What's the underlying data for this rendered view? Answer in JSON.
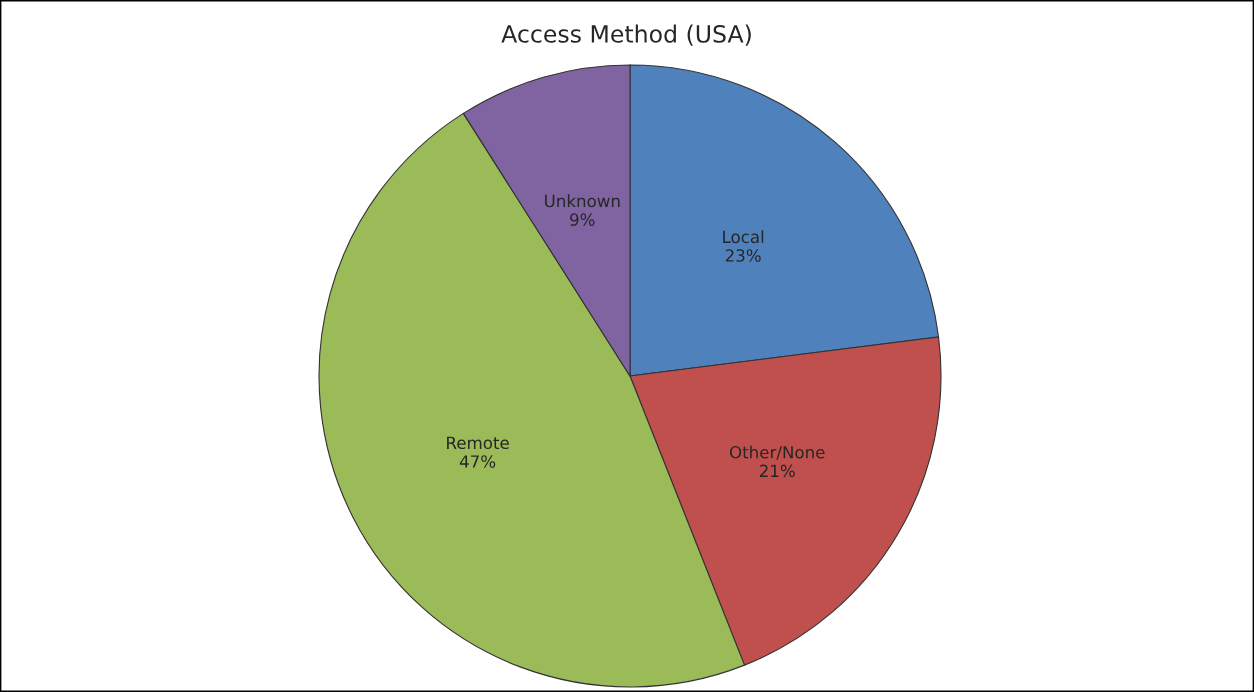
{
  "chart_data": {
    "type": "pie",
    "title": "Access Method (USA)",
    "categories": [
      "Local",
      "Other/None",
      "Remote",
      "Unknown"
    ],
    "values": [
      23,
      21,
      47,
      9
    ],
    "colors": [
      "#4f81bd",
      "#c0504d",
      "#9bbb59",
      "#8064a2"
    ],
    "value_labels": [
      "23%",
      "21%",
      "47%",
      "9%"
    ]
  }
}
